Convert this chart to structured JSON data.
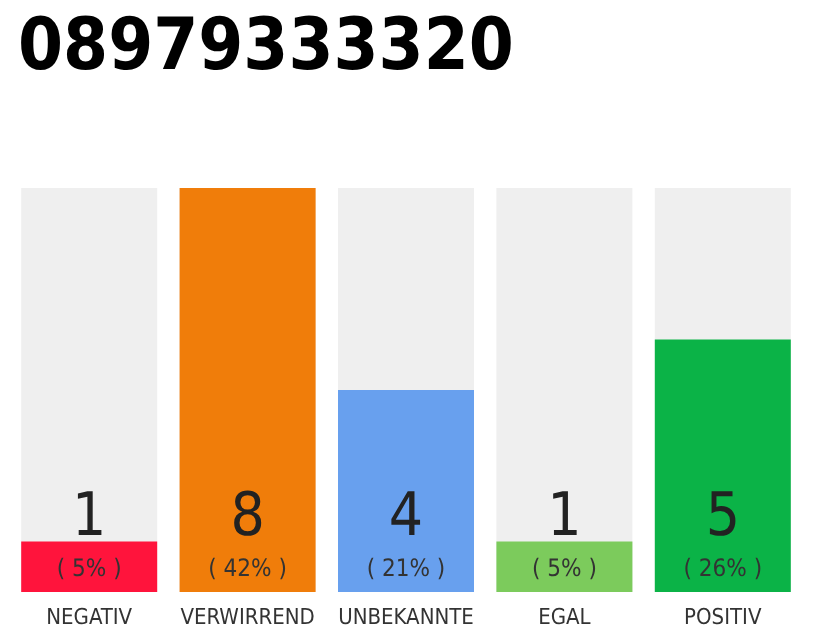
{
  "chart_data": {
    "type": "bar",
    "title": "08979333320",
    "categories": [
      "NEGATIV",
      "VERWIRREND",
      "UNBEKANNTE",
      "EGAL",
      "POSITIV"
    ],
    "values": [
      1,
      8,
      4,
      1,
      5
    ],
    "colors": [
      "#ff143c",
      "#f07d0a",
      "#68a0ee",
      "#7ccb5c",
      "#0bb347"
    ],
    "value_labels": [
      "1\n( 5% )",
      "8\n( 42% )",
      "4\n( 21% )",
      "1\n( 5% )",
      "5\n( 26% )"
    ]
  }
}
